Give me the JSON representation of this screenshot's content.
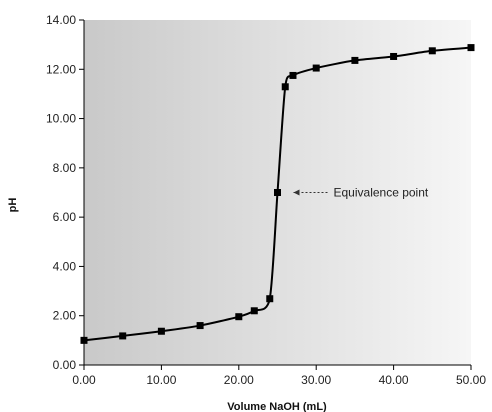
{
  "chart_data": {
    "type": "line",
    "title": "",
    "xlabel": "Volume NaOH (mL)",
    "ylabel": "pH",
    "xlim": [
      0,
      50
    ],
    "ylim": [
      0,
      14
    ],
    "x_ticks": [
      "0.00",
      "10.00",
      "20.00",
      "30.00",
      "40.00",
      "50.00"
    ],
    "y_ticks": [
      "0.00",
      "2.00",
      "4.00",
      "6.00",
      "8.00",
      "10.00",
      "12.00",
      "14.00"
    ],
    "grid": false,
    "background": "gray gradient",
    "series": [
      {
        "x": [
          0,
          5,
          10,
          15,
          20,
          22,
          24,
          25,
          26,
          27,
          30,
          35,
          40,
          45,
          50
        ],
        "y": [
          1.0,
          1.18,
          1.37,
          1.6,
          1.96,
          2.2,
          2.69,
          7.0,
          11.29,
          11.75,
          12.05,
          12.36,
          12.52,
          12.75,
          12.88
        ],
        "color": "#000000",
        "marker": "square"
      }
    ],
    "annotations": [
      {
        "text": "Equivalence point",
        "x": 25,
        "y": 7.0
      }
    ]
  }
}
